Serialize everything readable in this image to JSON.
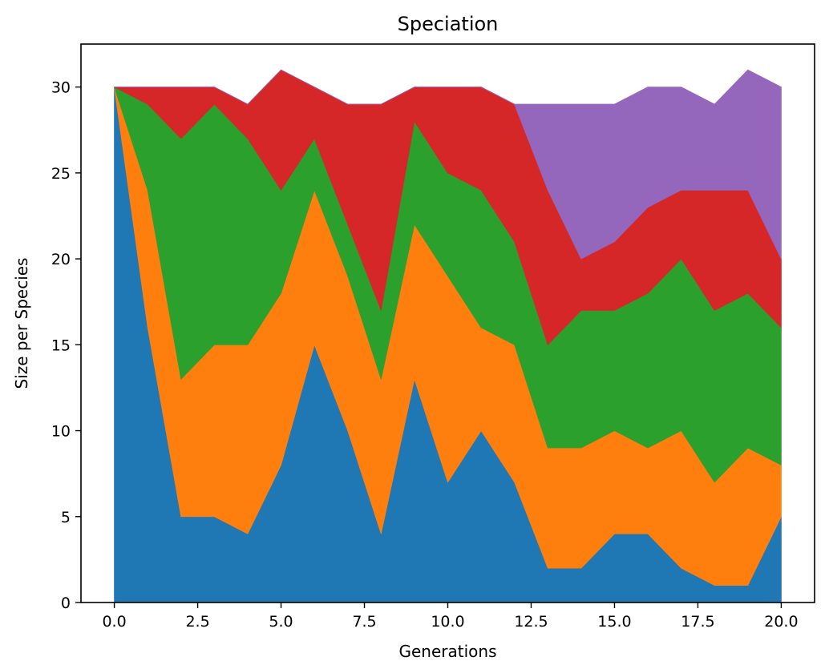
{
  "chart_data": {
    "type": "area",
    "stacked": true,
    "title": "Speciation",
    "xlabel": "Generations",
    "ylabel": "Size per Species",
    "xlim": [
      -1,
      21
    ],
    "ylim": [
      0,
      32.5
    ],
    "x_ticks": [
      0.0,
      2.5,
      5.0,
      7.5,
      10.0,
      12.5,
      15.0,
      17.5,
      20.0
    ],
    "x_tick_labels": [
      "0.0",
      "2.5",
      "5.0",
      "7.5",
      "10.0",
      "12.5",
      "15.0",
      "17.5",
      "20.0"
    ],
    "y_ticks": [
      0,
      5,
      10,
      15,
      20,
      25,
      30
    ],
    "y_tick_labels": [
      "0",
      "5",
      "10",
      "15",
      "20",
      "25",
      "30"
    ],
    "grid": false,
    "legend": "none",
    "x": [
      0,
      1,
      2,
      3,
      4,
      5,
      6,
      7,
      8,
      9,
      10,
      11,
      12,
      13,
      14,
      15,
      16,
      17,
      18,
      19,
      20
    ],
    "series": [
      {
        "color": "#1f77b4",
        "values": [
          30,
          16,
          5,
          5,
          4,
          8,
          15,
          10,
          4,
          13,
          7,
          10,
          7,
          2,
          2,
          4,
          4,
          2,
          1,
          1,
          5
        ]
      },
      {
        "color": "#ff7f0e",
        "values": [
          0,
          8,
          8,
          10,
          11,
          10,
          9,
          9,
          9,
          9,
          12,
          6,
          8,
          7,
          7,
          6,
          5,
          8,
          6,
          8,
          3
        ]
      },
      {
        "color": "#2ca02c",
        "values": [
          0,
          5,
          14,
          14,
          12,
          6,
          3,
          3,
          4,
          6,
          6,
          8,
          6,
          6,
          8,
          7,
          9,
          10,
          10,
          9,
          8
        ]
      },
      {
        "color": "#d62728",
        "values": [
          0,
          1,
          3,
          1,
          2,
          7,
          3,
          7,
          12,
          2,
          5,
          6,
          8,
          9,
          3,
          4,
          5,
          4,
          7,
          6,
          4
        ]
      },
      {
        "color": "#9467bd",
        "values": [
          0,
          0,
          0,
          0,
          0,
          0,
          0,
          0,
          0,
          0,
          0,
          0,
          0,
          5,
          9,
          8,
          7,
          6,
          5,
          7,
          10
        ]
      }
    ]
  }
}
